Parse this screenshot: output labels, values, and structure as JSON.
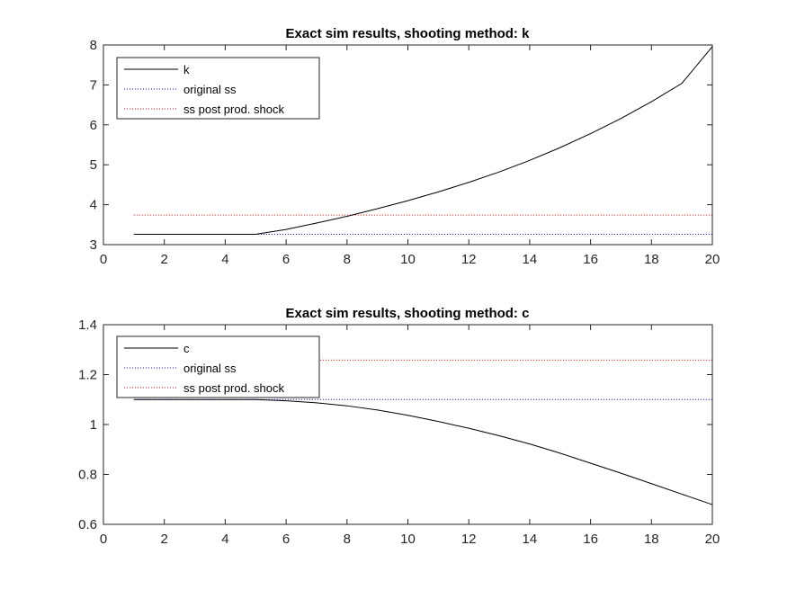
{
  "chart_data": [
    {
      "type": "line",
      "title": "Exact sim results, shooting method: k",
      "xlabel": "",
      "ylabel": "",
      "xlim": [
        0,
        20
      ],
      "ylim": [
        3,
        8
      ],
      "xticks": [
        0,
        2,
        4,
        6,
        8,
        10,
        12,
        14,
        16,
        18,
        20
      ],
      "yticks": [
        3,
        4,
        5,
        6,
        7,
        8
      ],
      "grid": false,
      "legend_position": "top-left",
      "series": [
        {
          "name": "k",
          "style": "solid",
          "color": "#000000",
          "x": [
            1,
            2,
            3,
            4,
            5,
            6,
            7,
            8,
            9,
            10,
            11,
            12,
            13,
            14,
            15,
            16,
            17,
            18,
            19,
            20
          ],
          "y": [
            3.26,
            3.26,
            3.26,
            3.26,
            3.26,
            3.38,
            3.54,
            3.71,
            3.9,
            4.1,
            4.32,
            4.56,
            4.82,
            5.11,
            5.43,
            5.78,
            6.16,
            6.58,
            7.04,
            7.96
          ]
        },
        {
          "name": "original ss",
          "style": "dotted",
          "color": "#0000ff",
          "x": [
            1,
            20
          ],
          "y": [
            3.26,
            3.26
          ]
        },
        {
          "name": "ss post prod. shock",
          "style": "dotted",
          "color": "#ff0000",
          "x": [
            1,
            20
          ],
          "y": [
            3.74,
            3.74
          ]
        }
      ]
    },
    {
      "type": "line",
      "title": "Exact sim results, shooting method: c",
      "xlabel": "",
      "ylabel": "",
      "xlim": [
        0,
        20
      ],
      "ylim": [
        0.6,
        1.4
      ],
      "xticks": [
        0,
        2,
        4,
        6,
        8,
        10,
        12,
        14,
        16,
        18,
        20
      ],
      "yticks": [
        0.6,
        0.8,
        1,
        1.2,
        1.4
      ],
      "grid": false,
      "legend_position": "top-left",
      "series": [
        {
          "name": "c",
          "style": "solid",
          "color": "#000000",
          "x": [
            1,
            2,
            3,
            4,
            5,
            6,
            7,
            8,
            9,
            10,
            11,
            12,
            13,
            14,
            15,
            16,
            17,
            18,
            19,
            20
          ],
          "y": [
            1.1,
            1.1,
            1.1,
            1.1,
            1.1,
            1.095,
            1.087,
            1.075,
            1.058,
            1.037,
            1.012,
            0.985,
            0.955,
            0.922,
            0.885,
            0.845,
            0.805,
            0.763,
            0.721,
            0.679
          ]
        },
        {
          "name": "original ss",
          "style": "dotted",
          "color": "#0000ff",
          "x": [
            1,
            20
          ],
          "y": [
            1.1,
            1.1
          ]
        },
        {
          "name": "ss post prod. shock",
          "style": "dotted",
          "color": "#ff0000",
          "x": [
            1,
            20
          ],
          "y": [
            1.258,
            1.258
          ]
        }
      ]
    }
  ]
}
